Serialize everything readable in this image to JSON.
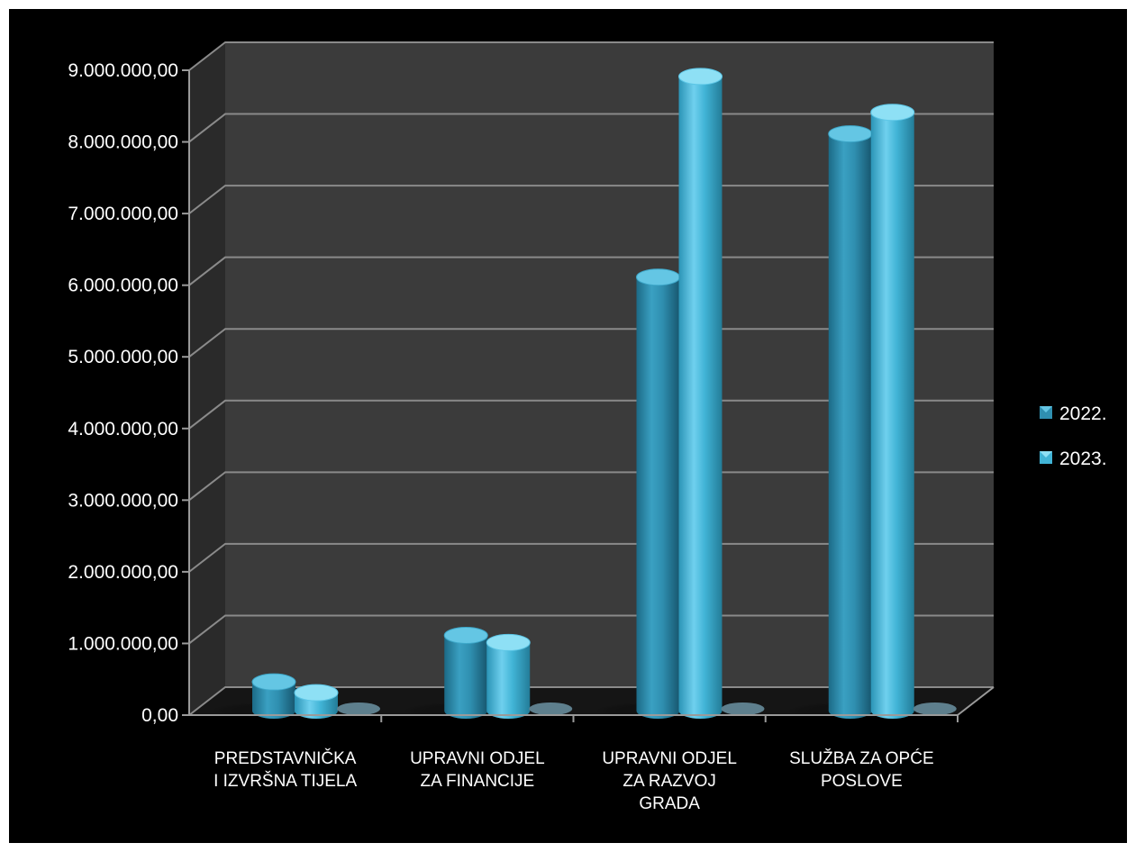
{
  "chart_data": {
    "type": "bar",
    "categories": [
      [
        "PREDSTAVNIČKA",
        "I IZVRŠNA TIJELA"
      ],
      [
        "UPRAVNI ODJEL",
        "ZA FINANCIJE"
      ],
      [
        "UPRAVNI ODJEL",
        "ZA RAZVOJ",
        "GRADA"
      ],
      [
        "SLUŽBA ZA OPĆE",
        "POSLOVE"
      ]
    ],
    "series": [
      {
        "name": "2022.",
        "values": [
          400000,
          1050000,
          6050000,
          8050000
        ],
        "color": "#2f8fb0"
      },
      {
        "name": "2023.",
        "values": [
          250000,
          950000,
          8850000,
          8350000
        ],
        "color": "#41b4d6"
      }
    ],
    "ylim": [
      0,
      9000000
    ],
    "yticks": [
      {
        "value": 0,
        "label": "0,00"
      },
      {
        "value": 1000000,
        "label": "1.000.000,00"
      },
      {
        "value": 2000000,
        "label": "2.000.000,00"
      },
      {
        "value": 3000000,
        "label": "3.000.000,00"
      },
      {
        "value": 4000000,
        "label": "4.000.000,00"
      },
      {
        "value": 5000000,
        "label": "5.000.000,00"
      },
      {
        "value": 6000000,
        "label": "6.000.000,00"
      },
      {
        "value": 7000000,
        "label": "7.000.000,00"
      },
      {
        "value": 8000000,
        "label": "8.000.000,00"
      },
      {
        "value": 9000000,
        "label": "9.000.000,00"
      }
    ],
    "grid": true,
    "legend": "right",
    "style": "3d-cylinder",
    "colors": {
      "background": "#000000",
      "wall": "#3b3b3b",
      "side_wall": "#2a2a2a",
      "grid": "#8a8a8a",
      "axis": "#9a9a9a",
      "text": "#ffffff"
    }
  }
}
